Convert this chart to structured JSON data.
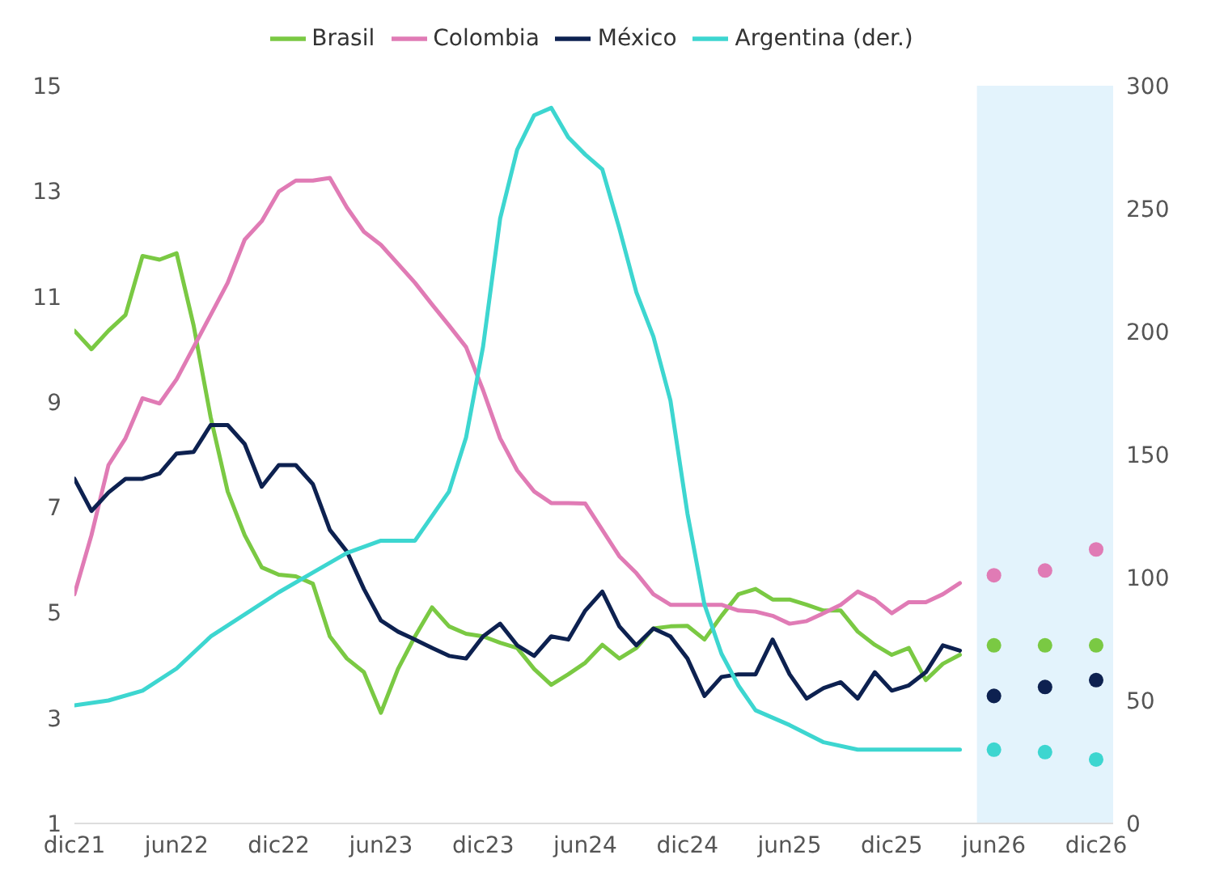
{
  "chart_data": {
    "type": "line",
    "x": [
      "2021-12",
      "2022-01",
      "2022-02",
      "2022-03",
      "2022-04",
      "2022-05",
      "2022-06",
      "2022-07",
      "2022-08",
      "2022-09",
      "2022-10",
      "2022-11",
      "2022-12",
      "2023-01",
      "2023-02",
      "2023-03",
      "2023-04",
      "2023-05",
      "2023-06",
      "2023-07",
      "2023-08",
      "2023-09",
      "2023-10",
      "2023-11",
      "2023-12",
      "2024-01",
      "2024-02",
      "2024-03",
      "2024-04",
      "2024-05",
      "2024-06",
      "2024-07",
      "2024-08",
      "2024-09",
      "2024-10",
      "2024-11",
      "2024-12",
      "2025-01",
      "2025-02",
      "2025-03",
      "2025-04",
      "2025-05",
      "2025-06",
      "2025-07",
      "2025-08",
      "2025-09",
      "2025-10",
      "2025-11",
      "2025-12",
      "2026-01",
      "2026-02",
      "2026-03",
      "2026-04"
    ],
    "series": [
      {
        "name": "Brasil",
        "color": "#7ac943",
        "values": [
          10.35,
          10.0,
          10.35,
          10.65,
          11.77,
          11.7,
          11.82,
          10.45,
          8.71,
          7.3,
          6.47,
          5.86,
          5.72,
          5.69,
          5.55,
          4.55,
          4.13,
          3.87,
          3.1,
          3.93,
          4.55,
          5.1,
          4.74,
          4.6,
          4.55,
          4.43,
          4.33,
          3.93,
          3.63,
          3.83,
          4.05,
          4.39,
          4.13,
          4.33,
          4.7,
          4.74,
          4.75,
          4.49,
          4.94,
          5.35,
          5.45,
          5.25,
          5.25,
          5.15,
          5.04,
          5.04,
          4.64,
          4.39,
          4.2,
          4.33,
          3.72,
          4.03,
          4.2
        ]
      },
      {
        "name": "Colombia",
        "color": "#e07bb5",
        "values": [
          5.35,
          6.47,
          7.8,
          8.31,
          9.07,
          8.97,
          9.43,
          10.04,
          10.65,
          11.26,
          12.08,
          12.43,
          12.99,
          13.2,
          13.2,
          13.25,
          12.69,
          12.23,
          11.98,
          11.62,
          11.26,
          10.85,
          10.45,
          10.04,
          9.22,
          8.31,
          7.7,
          7.3,
          7.08,
          7.08,
          7.07,
          6.57,
          6.07,
          5.75,
          5.35,
          5.15,
          5.15,
          5.15,
          5.15,
          5.04,
          5.02,
          4.94,
          4.79,
          4.84,
          4.99,
          5.15,
          5.4,
          5.25,
          4.99,
          5.2,
          5.2,
          5.35,
          5.56
        ]
      },
      {
        "name": "México",
        "color": "#0d2150",
        "values": [
          7.54,
          6.93,
          7.28,
          7.54,
          7.54,
          7.64,
          8.02,
          8.05,
          8.56,
          8.56,
          8.2,
          7.39,
          7.8,
          7.8,
          7.44,
          6.57,
          6.16,
          5.45,
          4.85,
          4.64,
          4.49,
          4.33,
          4.18,
          4.13,
          4.55,
          4.79,
          4.38,
          4.18,
          4.55,
          4.49,
          5.04,
          5.4,
          4.74,
          4.38,
          4.7,
          4.55,
          4.13,
          3.42,
          3.78,
          3.83,
          3.83,
          4.49,
          3.83,
          3.37,
          3.57,
          3.68,
          3.37,
          3.87,
          3.52,
          3.62,
          3.87,
          4.38,
          4.28
        ]
      },
      {
        "name": "Argentina (der.)",
        "color": "#3dd6d0",
        "axis": "y2",
        "x": [
          "2021-12",
          "2022-02",
          "2022-04",
          "2022-06",
          "2022-08",
          "2022-10",
          "2022-12",
          "2023-02",
          "2023-04",
          "2023-06",
          "2023-08",
          "2023-10",
          "2023-11",
          "2023-12",
          "2024-01",
          "2024-02",
          "2024-03",
          "2024-04",
          "2024-05",
          "2024-06",
          "2024-07",
          "2024-08",
          "2024-09",
          "2024-10",
          "2024-11",
          "2024-12",
          "2025-01",
          "2025-02",
          "2025-03",
          "2025-04",
          "2025-06",
          "2025-08",
          "2025-10",
          "2025-12",
          "2026-02",
          "2026-04"
        ],
        "values": [
          48,
          50,
          54,
          63,
          76,
          85,
          94,
          102,
          110,
          115,
          115,
          135,
          157,
          194,
          246,
          274,
          288,
          291,
          279,
          272,
          266,
          242,
          216,
          198,
          172,
          126,
          89,
          69,
          56,
          46,
          40,
          33,
          30,
          30,
          30,
          30
        ]
      },
      {
        "type": "scatter",
        "color": "#e07bb5",
        "marker": "circle",
        "x": [
          "2026-06",
          "2026-09",
          "2026-12"
        ],
        "values": [
          5.71,
          5.8,
          6.2
        ]
      },
      {
        "type": "scatter",
        "color": "#7ac943",
        "marker": "circle",
        "x": [
          "2026-06",
          "2026-09",
          "2026-12"
        ],
        "values": [
          4.38,
          4.38,
          4.38
        ]
      },
      {
        "type": "scatter",
        "color": "#0d2150",
        "marker": "circle",
        "x": [
          "2026-06",
          "2026-09",
          "2026-12"
        ],
        "values": [
          3.42,
          3.59,
          3.72
        ]
      },
      {
        "type": "scatter",
        "color": "#3dd6d0",
        "marker": "circle",
        "axis": "y2",
        "x": [
          "2026-06",
          "2026-09",
          "2026-12"
        ],
        "values": [
          30,
          29,
          26
        ]
      }
    ],
    "xlim": [
      "2021-12",
      "2027-01"
    ],
    "xticks": [
      {
        "value": "2021-12",
        "label": "dic21"
      },
      {
        "value": "2022-06",
        "label": "jun22"
      },
      {
        "value": "2022-12",
        "label": "dic22"
      },
      {
        "value": "2023-06",
        "label": "jun23"
      },
      {
        "value": "2023-12",
        "label": "dic23"
      },
      {
        "value": "2024-06",
        "label": "jun24"
      },
      {
        "value": "2024-12",
        "label": "dic24"
      },
      {
        "value": "2025-06",
        "label": "jun25"
      },
      {
        "value": "2025-12",
        "label": "dic25"
      },
      {
        "value": "2026-06",
        "label": "jun26"
      },
      {
        "value": "2026-12",
        "label": "dic26"
      }
    ],
    "ylim": [
      1,
      15
    ],
    "yticks": [
      1,
      3,
      5,
      7,
      9,
      11,
      13,
      15
    ],
    "y2lim": [
      0,
      300
    ],
    "y2ticks": [
      0,
      50,
      100,
      150,
      200,
      250,
      300
    ],
    "bands": [
      {
        "axis": "x",
        "from": "2026-05",
        "to": "2027-01",
        "color": "#e3f3fc"
      }
    ],
    "legend": "top",
    "grid": false,
    "marker": "none",
    "line_style": "solid"
  }
}
